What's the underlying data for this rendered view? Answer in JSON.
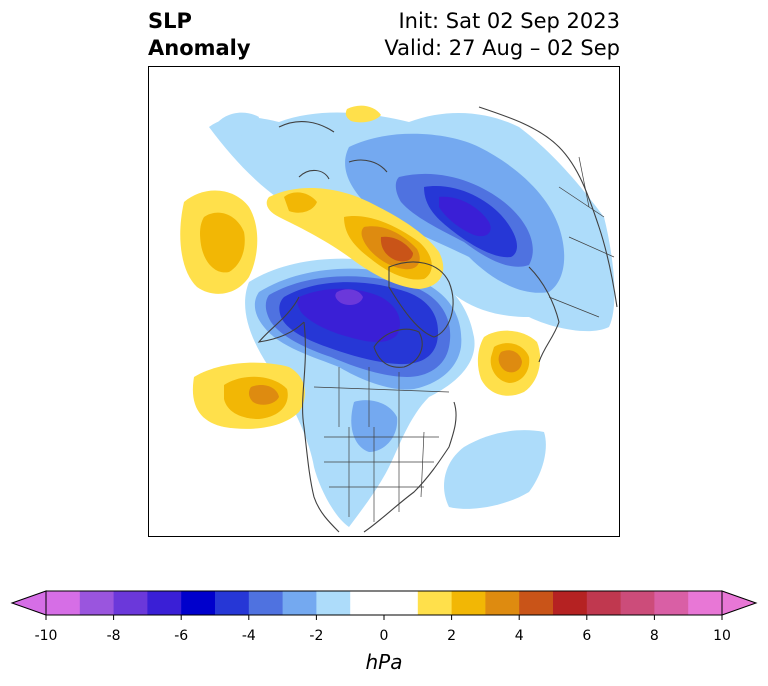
{
  "title": {
    "left_line1": "SLP",
    "left_line2": "Anomaly",
    "right_line1": "Init: Sat 02 Sep 2023",
    "right_line2": "Valid: 27 Aug – 02 Sep"
  },
  "colorbar": {
    "units": "hPa",
    "min": -10,
    "max": 10,
    "extend": "both",
    "tick_values": [
      -10,
      -8,
      -6,
      -4,
      -2,
      0,
      2,
      4,
      6,
      8,
      10
    ],
    "tick_labels": [
      "-10",
      "-8",
      "-6",
      "-4",
      "-2",
      "0",
      "2",
      "4",
      "6",
      "8",
      "10"
    ],
    "levels": [
      -10,
      -9,
      -8,
      -7,
      -6,
      -5,
      -4,
      -3,
      -2,
      -1,
      1,
      2,
      3,
      4,
      5,
      6,
      7,
      8,
      9,
      10
    ],
    "colors": [
      "#d66ee6",
      "#9a55de",
      "#6b38da",
      "#3a1fd6",
      "#0000cc",
      "#2637d6",
      "#4f72e0",
      "#74a9f0",
      "#addcfa",
      "#ffffff",
      "#ffe04b",
      "#f2b705",
      "#de8b10",
      "#c95418",
      "#b52222",
      "#c0384f",
      "#cc4c7a",
      "#d95fa5",
      "#e877d6"
    ],
    "extend_low_color": "#d66ee6",
    "extend_high_color": "#e877d6"
  },
  "map": {
    "projection": "polar stereographic, North America / North Atlantic sector",
    "coastline_color": "#404040",
    "anomaly_features": [
      {
        "name": "negative-center-hudson-bay-canada",
        "sign": "negative",
        "peak_hPa": -9
      },
      {
        "name": "negative-center-greenland-svalbard",
        "sign": "negative",
        "peak_hPa": -6
      },
      {
        "name": "positive-center-siberia-arctic",
        "sign": "positive",
        "peak_hPa": 5
      },
      {
        "name": "positive-center-north-pacific",
        "sign": "positive",
        "peak_hPa": 3
      },
      {
        "name": "positive-center-bering-sea",
        "sign": "positive",
        "peak_hPa": 3
      },
      {
        "name": "positive-center-north-atlantic",
        "sign": "positive",
        "peak_hPa": 4
      },
      {
        "name": "negative-area-western-atlantic",
        "sign": "negative",
        "peak_hPa": -2
      }
    ]
  }
}
